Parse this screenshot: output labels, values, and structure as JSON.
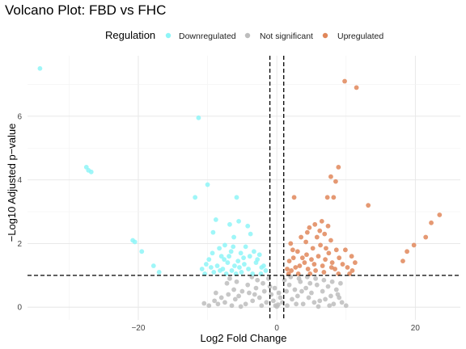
{
  "chart_data": {
    "type": "scatter",
    "title": "Volcano Plot: FBD vs FHC",
    "xlabel": "Log2 Fold Change",
    "ylabel": "−Log10 Adjusted p−value",
    "xlim": [
      -36,
      26.5
    ],
    "ylim": [
      -0.4,
      7.9
    ],
    "x_ticks": [
      -20,
      0,
      20
    ],
    "x_tick_labels": [
      "−20",
      "0",
      "20"
    ],
    "y_ticks": [
      0,
      2,
      4,
      6
    ],
    "y_tick_labels": [
      "0",
      "2",
      "4",
      "6"
    ],
    "grid": true,
    "legend": {
      "title": "Regulation",
      "placement": "top",
      "entries": [
        {
          "label": "Downregulated",
          "color": "#8ef5f7"
        },
        {
          "label": "Not significant",
          "color": "#bdbdbd"
        },
        {
          "label": "Upregulated",
          "color": "#e0875a"
        }
      ]
    },
    "thresholds": {
      "vertical": [
        -1,
        1
      ],
      "horizontal": 1
    },
    "series": [
      {
        "name": "Downregulated",
        "color": "#8ef5f7",
        "points": [
          [
            -34.2,
            7.5
          ],
          [
            -27.5,
            4.4
          ],
          [
            -27.2,
            4.3
          ],
          [
            -26.8,
            4.25
          ],
          [
            -20.8,
            2.1
          ],
          [
            -20.5,
            2.05
          ],
          [
            -19.5,
            1.75
          ],
          [
            -17.8,
            1.3
          ],
          [
            -17,
            1.1
          ],
          [
            -11.3,
            5.95
          ],
          [
            -11.8,
            3.45
          ],
          [
            -10,
            3.85
          ],
          [
            -8.8,
            2.75
          ],
          [
            -5.8,
            3.45
          ],
          [
            -5.5,
            2.7
          ],
          [
            -6.8,
            2.6
          ],
          [
            -4.2,
            2.55
          ],
          [
            -3.8,
            2.3
          ],
          [
            -9.2,
            2.35
          ],
          [
            -6.2,
            2.2
          ],
          [
            -7.5,
            1.95
          ],
          [
            -8.3,
            1.85
          ],
          [
            -6.9,
            1.6
          ],
          [
            -4.5,
            1.9
          ],
          [
            -2.5,
            1.65
          ],
          [
            -3,
            1.4
          ],
          [
            -2.2,
            1.25
          ],
          [
            -1.6,
            1.15
          ],
          [
            -4.8,
            1.55
          ],
          [
            -5.6,
            1.45
          ],
          [
            -6.1,
            1.3
          ],
          [
            -7.1,
            1.4
          ],
          [
            -7.8,
            1.2
          ],
          [
            -8.6,
            1.3
          ],
          [
            -9.1,
            1.1
          ],
          [
            -9.5,
            1.25
          ],
          [
            -10.2,
            1.35
          ],
          [
            -10.8,
            1.2
          ],
          [
            -3.5,
            1.05
          ],
          [
            -4.1,
            1.2
          ],
          [
            -5.1,
            1.1
          ],
          [
            -6.5,
            1.15
          ],
          [
            -2.8,
            1.5
          ],
          [
            -5.2,
            1.7
          ],
          [
            -8,
            1.6
          ],
          [
            -9.8,
            1.5
          ],
          [
            -7.3,
            1.05
          ],
          [
            -4.7,
            1.35
          ],
          [
            -3.3,
            1.75
          ],
          [
            -6.6,
            1.75
          ],
          [
            -8.2,
            1.15
          ],
          [
            -5.9,
            1.05
          ],
          [
            -10.4,
            1.05
          ],
          [
            -2.3,
            1.05
          ],
          [
            -3.9,
            1.6
          ],
          [
            -7.6,
            1.5
          ],
          [
            -9.3,
            1.7
          ],
          [
            -6.3,
            1.9
          ],
          [
            -1.9,
            1.3
          ],
          [
            -5.4,
            1.25
          ]
        ]
      },
      {
        "name": "Upregulated",
        "color": "#e0875a",
        "points": [
          [
            9.8,
            7.1
          ],
          [
            11.5,
            6.9
          ],
          [
            8.9,
            4.4
          ],
          [
            7.8,
            4.1
          ],
          [
            8.5,
            3.95
          ],
          [
            13.2,
            3.2
          ],
          [
            2.5,
            3.45
          ],
          [
            7.3,
            3.45
          ],
          [
            8.2,
            3.45
          ],
          [
            23.5,
            2.9
          ],
          [
            22.3,
            2.65
          ],
          [
            21.5,
            2.2
          ],
          [
            19.8,
            1.95
          ],
          [
            18.8,
            1.75
          ],
          [
            18.2,
            1.45
          ],
          [
            6.5,
            2.7
          ],
          [
            5.5,
            2.6
          ],
          [
            4.7,
            2.5
          ],
          [
            7.4,
            2.55
          ],
          [
            6.2,
            2.4
          ],
          [
            5.8,
            2.2
          ],
          [
            3.5,
            2.2
          ],
          [
            4.2,
            2.05
          ],
          [
            7.8,
            2.1
          ],
          [
            2,
            2
          ],
          [
            3,
            1.75
          ],
          [
            2.4,
            1.55
          ],
          [
            1.8,
            1.45
          ],
          [
            1.5,
            1.2
          ],
          [
            2.1,
            1.15
          ],
          [
            3.3,
            1.3
          ],
          [
            4,
            1.4
          ],
          [
            4.5,
            1.2
          ],
          [
            5,
            1.5
          ],
          [
            5.4,
            1.35
          ],
          [
            6,
            1.6
          ],
          [
            6.6,
            1.3
          ],
          [
            7,
            1.5
          ],
          [
            7.5,
            1.7
          ],
          [
            8,
            1.4
          ],
          [
            8.4,
            1.2
          ],
          [
            9,
            1.55
          ],
          [
            9.5,
            1.35
          ],
          [
            10.2,
            1.25
          ],
          [
            10.8,
            1.6
          ],
          [
            11.3,
            1.4
          ],
          [
            5.2,
            1.85
          ],
          [
            6.3,
            1.95
          ],
          [
            7.1,
            1.85
          ],
          [
            8.6,
            1.8
          ],
          [
            4.3,
            1.65
          ],
          [
            3.7,
            1.55
          ],
          [
            2.7,
            1.25
          ],
          [
            4.8,
            1.05
          ],
          [
            6.8,
            1.1
          ],
          [
            8.9,
            1.05
          ],
          [
            10.5,
            1.05
          ],
          [
            3.1,
            1.05
          ],
          [
            7.9,
            1.25
          ],
          [
            9.9,
            1.8
          ],
          [
            5.6,
            1.15
          ],
          [
            6.9,
            2.3
          ],
          [
            4.4,
            2.35
          ],
          [
            2.3,
            1.8
          ],
          [
            1.7,
            1.05
          ],
          [
            10.9,
            1.15
          ]
        ]
      },
      {
        "name": "Not significant",
        "color": "#bdbdbd",
        "points": [
          [
            -9,
            0.2
          ],
          [
            -8.5,
            0.1
          ],
          [
            -8,
            0.3
          ],
          [
            -7.5,
            0.15
          ],
          [
            -7,
            0.4
          ],
          [
            -6.5,
            0.05
          ],
          [
            -6,
            0.25
          ],
          [
            -5.5,
            0.35
          ],
          [
            -5,
            0.5
          ],
          [
            -4.5,
            0.1
          ],
          [
            -4,
            0.45
          ],
          [
            -3.5,
            0.2
          ],
          [
            -3,
            0.6
          ],
          [
            -2.5,
            0.3
          ],
          [
            -2,
            0.75
          ],
          [
            -1.5,
            0.15
          ],
          [
            -1.2,
            0.9
          ],
          [
            -0.8,
            0.4
          ],
          [
            -0.5,
            0.2
          ],
          [
            -0.2,
            0.05
          ],
          [
            0,
            0.02
          ],
          [
            0.2,
            0.08
          ],
          [
            0.5,
            0.3
          ],
          [
            0.8,
            0.15
          ],
          [
            1.1,
            0.85
          ],
          [
            1.4,
            0.5
          ],
          [
            1.8,
            0.7
          ],
          [
            2.2,
            0.25
          ],
          [
            2.6,
            0.55
          ],
          [
            3,
            0.35
          ],
          [
            3.4,
            0.8
          ],
          [
            3.8,
            0.1
          ],
          [
            4.2,
            0.6
          ],
          [
            4.6,
            0.3
          ],
          [
            5,
            0.45
          ],
          [
            5.4,
            0.15
          ],
          [
            5.8,
            0.7
          ],
          [
            6.2,
            0.2
          ],
          [
            6.6,
            0.5
          ],
          [
            7,
            0.25
          ],
          [
            7.4,
            0.65
          ],
          [
            7.8,
            0.35
          ],
          [
            8.2,
            0.1
          ],
          [
            8.6,
            0.55
          ],
          [
            9,
            0.3
          ],
          [
            9.4,
            0.15
          ],
          [
            10,
            0.05
          ],
          [
            -9.8,
            0.05
          ],
          [
            -10.5,
            0.12
          ],
          [
            -2.8,
            0.85
          ],
          [
            -4.2,
            0.7
          ],
          [
            -5.8,
            0.8
          ],
          [
            -7.2,
            0.75
          ],
          [
            -3.6,
            0.95
          ],
          [
            -6.8,
            0.9
          ],
          [
            -1.8,
            0.5
          ],
          [
            2,
            0.95
          ],
          [
            3.2,
            0.9
          ],
          [
            4.4,
            0.95
          ],
          [
            5.6,
            0.9
          ],
          [
            6.8,
            0.85
          ],
          [
            8,
            0.8
          ],
          [
            9.2,
            0.75
          ],
          [
            1.5,
            0.05
          ],
          [
            -1,
            0.65
          ],
          [
            0.3,
            0.45
          ],
          [
            -0.3,
            0.6
          ],
          [
            2.8,
            0.1
          ],
          [
            -2.2,
            0.05
          ],
          [
            6,
            0.02
          ],
          [
            -5.2,
            0.02
          ],
          [
            7.6,
            0.05
          ],
          [
            -8.8,
            0.45
          ],
          [
            8.8,
            0.4
          ],
          [
            -3.2,
            0.4
          ],
          [
            3.6,
            0.5
          ],
          [
            -6.2,
            0.55
          ],
          [
            4.8,
            0.75
          ]
        ]
      }
    ]
  }
}
